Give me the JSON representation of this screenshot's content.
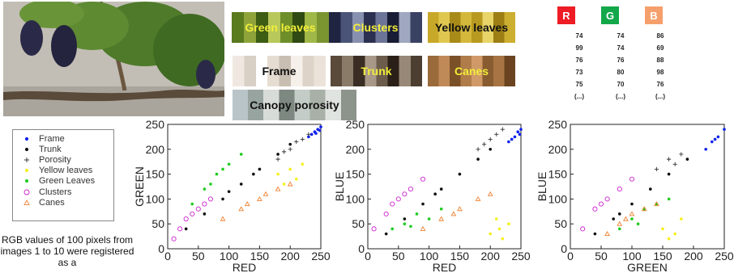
{
  "swatches": [
    {
      "label": "Green leaves",
      "text_color": "#f2ee3a",
      "colors": [
        "#5a7a1e",
        "#8ea43a",
        "#3d5c14",
        "#b8c85a",
        "#6e8e2a",
        "#2f4a12",
        "#a0b848",
        "#7a9430"
      ]
    },
    {
      "label": "Clusters",
      "text_color": "#f2ee3a",
      "colors": [
        "#1f2440",
        "#4a5478",
        "#8890b0",
        "#2c3050",
        "#6c7498",
        "#181c34",
        "#a0a8c0",
        "#3a4264"
      ]
    },
    {
      "label": "Yellow leaves",
      "text_color": "#111111",
      "colors": [
        "#c8a828",
        "#e0c850",
        "#a88a18",
        "#d4b83c",
        "#b89a20",
        "#e8d468",
        "#9c7e14",
        "#ccae30"
      ]
    },
    {
      "label": "Frame",
      "text_color": "#111111",
      "colors": [
        "#f0e8e0",
        "#d8cfc5",
        "#ffffff",
        "#e6ddd2",
        "#c9beb2",
        "#f6f0ea",
        "#ddd3c8",
        "#ebe3da"
      ]
    },
    {
      "label": "Trunk",
      "text_color": "#f2ee3a",
      "colors": [
        "#5a4a3a",
        "#8a7a68",
        "#3a2e24",
        "#a89888",
        "#6c5c4c",
        "#2a2018",
        "#988878",
        "#4c3e30"
      ]
    },
    {
      "label": "Canes",
      "text_color": "#f2ee3a",
      "colors": [
        "#9a6a3a",
        "#c08a58",
        "#7a5028",
        "#b07c4a",
        "#d09a68",
        "#885c30",
        "#a87444",
        "#6a4420"
      ]
    },
    {
      "label": "Canopy porosity",
      "text_color": "#111111",
      "colors": [
        "#b8c4c8",
        "#98a4a0",
        "#d8dcd8",
        "#7c8880",
        "#c4ccc8",
        "#a8b0a8",
        "#e0e4e0",
        "#8c948c"
      ]
    }
  ],
  "rgb_table": {
    "headers": [
      "R",
      "G",
      "B"
    ],
    "header_colors": [
      "#ee1c24",
      "#12a84a",
      "#f5a06c"
    ],
    "columns": [
      [
        "74",
        "99",
        "76",
        "73",
        "75",
        "(...)"
      ],
      [
        "74",
        "74",
        "76",
        "80",
        "70",
        "(...)"
      ],
      [
        "86",
        "69",
        "88",
        "98",
        "76",
        "(...)"
      ]
    ]
  },
  "legend": [
    {
      "label": "Frame",
      "marker": "dot",
      "color": "#1020ee"
    },
    {
      "label": "Trunk",
      "marker": "dot",
      "color": "#111111"
    },
    {
      "label": "Porosity",
      "marker": "plus",
      "color": "#333333"
    },
    {
      "label": "Yellow leaves",
      "marker": "dot",
      "color": "#f5f020"
    },
    {
      "label": "Green Leaves",
      "marker": "dot",
      "color": "#22cc22"
    },
    {
      "label": "Clusters",
      "marker": "circle",
      "color": "#cc22cc"
    },
    {
      "label": "Canes",
      "marker": "triangle",
      "color": "#f08030"
    }
  ],
  "caption": "RGB values of 100 pixels from images 1 to 10 were registered as a",
  "chart_data": [
    {
      "type": "scatter",
      "title": "",
      "xlabel": "RED",
      "ylabel": "GREEN",
      "xlim": [
        0,
        250
      ],
      "ylim": [
        0,
        250
      ],
      "xticks": [
        "0",
        "50",
        "100",
        "150",
        "200",
        "250"
      ],
      "yticks": [
        "0",
        "50",
        "100",
        "150",
        "200",
        "250"
      ],
      "grid": false,
      "series": [
        {
          "name": "Frame",
          "marker": "dot",
          "color": "#1020ee",
          "points": [
            [
              230,
              225
            ],
            [
              240,
              235
            ],
            [
              245,
              240
            ],
            [
              250,
              245
            ],
            [
              235,
              230
            ],
            [
              248,
              238
            ],
            [
              242,
              232
            ]
          ]
        },
        {
          "name": "Trunk",
          "marker": "dot",
          "color": "#111111",
          "points": [
            [
              30,
              40
            ],
            [
              60,
              70
            ],
            [
              90,
              100
            ],
            [
              120,
              130
            ],
            [
              150,
              160
            ],
            [
              180,
              190
            ],
            [
              200,
              210
            ],
            [
              100,
              115
            ],
            [
              140,
              150
            ]
          ]
        },
        {
          "name": "Porosity",
          "marker": "plus",
          "color": "#333333",
          "points": [
            [
              180,
              180
            ],
            [
              200,
              200
            ],
            [
              220,
              220
            ],
            [
              210,
              215
            ],
            [
              230,
              230
            ],
            [
              190,
              195
            ]
          ]
        },
        {
          "name": "Yellow leaves",
          "marker": "dot",
          "color": "#f5f020",
          "points": [
            [
              180,
              150
            ],
            [
              200,
              160
            ],
            [
              220,
              170
            ],
            [
              210,
              140
            ],
            [
              190,
              130
            ]
          ]
        },
        {
          "name": "Green Leaves",
          "marker": "dot",
          "color": "#22cc22",
          "points": [
            [
              40,
              90
            ],
            [
              60,
              120
            ],
            [
              80,
              150
            ],
            [
              100,
              170
            ],
            [
              120,
              190
            ],
            [
              70,
              130
            ],
            [
              90,
              160
            ]
          ]
        },
        {
          "name": "Clusters",
          "marker": "circle",
          "color": "#cc22cc",
          "points": [
            [
              10,
              20
            ],
            [
              30,
              60
            ],
            [
              50,
              80
            ],
            [
              70,
              100
            ],
            [
              40,
              70
            ],
            [
              60,
              90
            ],
            [
              20,
              40
            ]
          ]
        },
        {
          "name": "Canes",
          "marker": "triangle",
          "color": "#f08030",
          "points": [
            [
              90,
              60
            ],
            [
              120,
              80
            ],
            [
              150,
              100
            ],
            [
              180,
              120
            ],
            [
              200,
              130
            ],
            [
              130,
              90
            ],
            [
              160,
              110
            ]
          ]
        }
      ]
    },
    {
      "type": "scatter",
      "title": "",
      "xlabel": "RED",
      "ylabel": "BLUE",
      "xlim": [
        0,
        250
      ],
      "ylim": [
        0,
        250
      ],
      "xticks": [
        "0",
        "50",
        "100",
        "150",
        "200",
        "250"
      ],
      "yticks": [
        "0",
        "50",
        "100",
        "150",
        "200",
        "250"
      ],
      "grid": false,
      "series": [
        {
          "name": "Frame",
          "marker": "dot",
          "color": "#1020ee",
          "points": [
            [
              230,
              215
            ],
            [
              240,
              225
            ],
            [
              245,
              235
            ],
            [
              250,
              240
            ],
            [
              235,
              220
            ],
            [
              248,
              230
            ]
          ]
        },
        {
          "name": "Trunk",
          "marker": "dot",
          "color": "#111111",
          "points": [
            [
              30,
              30
            ],
            [
              60,
              60
            ],
            [
              90,
              90
            ],
            [
              120,
              120
            ],
            [
              150,
              150
            ],
            [
              180,
              180
            ],
            [
              200,
              200
            ],
            [
              110,
              110
            ]
          ]
        },
        {
          "name": "Porosity",
          "marker": "plus",
          "color": "#333333",
          "points": [
            [
              180,
              200
            ],
            [
              200,
              220
            ],
            [
              220,
              240
            ],
            [
              210,
              230
            ],
            [
              190,
              210
            ]
          ]
        },
        {
          "name": "Yellow leaves",
          "marker": "dot",
          "color": "#f5f020",
          "points": [
            [
              200,
              30
            ],
            [
              215,
              40
            ],
            [
              230,
              50
            ],
            [
              220,
              20
            ],
            [
              210,
              60
            ]
          ]
        },
        {
          "name": "Green Leaves",
          "marker": "dot",
          "color": "#22cc22",
          "points": [
            [
              40,
              40
            ],
            [
              60,
              50
            ],
            [
              80,
              70
            ],
            [
              100,
              60
            ],
            [
              120,
              80
            ],
            [
              70,
              45
            ]
          ]
        },
        {
          "name": "Clusters",
          "marker": "circle",
          "color": "#cc22cc",
          "points": [
            [
              10,
              40
            ],
            [
              30,
              70
            ],
            [
              50,
              100
            ],
            [
              70,
              120
            ],
            [
              90,
              140
            ],
            [
              40,
              90
            ],
            [
              60,
              110
            ]
          ]
        },
        {
          "name": "Canes",
          "marker": "triangle",
          "color": "#f08030",
          "points": [
            [
              90,
              40
            ],
            [
              120,
              60
            ],
            [
              150,
              80
            ],
            [
              180,
              100
            ],
            [
              200,
              110
            ],
            [
              140,
              70
            ]
          ]
        }
      ]
    },
    {
      "type": "scatter",
      "title": "",
      "xlabel": "GREEN",
      "ylabel": "BLUE",
      "xlim": [
        0,
        250
      ],
      "ylim": [
        0,
        250
      ],
      "xticks": [
        "0",
        "50",
        "100",
        "150",
        "200",
        "250"
      ],
      "yticks": [
        "0",
        "50",
        "100",
        "150",
        "200",
        "250"
      ],
      "grid": false,
      "series": [
        {
          "name": "Frame",
          "marker": "dot",
          "color": "#1020ee",
          "points": [
            [
              220,
              200
            ],
            [
              230,
              215
            ],
            [
              240,
              225
            ],
            [
              250,
              240
            ],
            [
              235,
              220
            ]
          ]
        },
        {
          "name": "Trunk",
          "marker": "dot",
          "color": "#111111",
          "points": [
            [
              40,
              30
            ],
            [
              70,
              60
            ],
            [
              100,
              90
            ],
            [
              130,
              120
            ],
            [
              160,
              150
            ],
            [
              190,
              180
            ],
            [
              80,
              70
            ]
          ]
        },
        {
          "name": "Porosity",
          "marker": "plus",
          "color": "#333333",
          "points": [
            [
              140,
              160
            ],
            [
              160,
              180
            ],
            [
              180,
              190
            ],
            [
              170,
              170
            ]
          ]
        },
        {
          "name": "Yellow leaves",
          "marker": "dot",
          "color": "#f5f020",
          "points": [
            [
              150,
              40
            ],
            [
              170,
              30
            ],
            [
              180,
              60
            ],
            [
              160,
              20
            ]
          ]
        },
        {
          "name": "Green Leaves",
          "marker": "dot",
          "color": "#22cc22",
          "points": [
            [
              80,
              40
            ],
            [
              100,
              60
            ],
            [
              120,
              80
            ],
            [
              140,
              90
            ],
            [
              160,
              100
            ],
            [
              110,
              50
            ]
          ]
        },
        {
          "name": "Clusters",
          "marker": "circle",
          "color": "#cc22cc",
          "points": [
            [
              20,
              40
            ],
            [
              40,
              80
            ],
            [
              60,
              100
            ],
            [
              80,
              120
            ],
            [
              100,
              140
            ],
            [
              50,
              90
            ]
          ]
        },
        {
          "name": "Canes",
          "marker": "triangle",
          "color": "#f08030",
          "points": [
            [
              60,
              30
            ],
            [
              80,
              50
            ],
            [
              100,
              70
            ],
            [
              120,
              80
            ],
            [
              140,
              90
            ],
            [
              90,
              60
            ]
          ]
        }
      ]
    }
  ]
}
